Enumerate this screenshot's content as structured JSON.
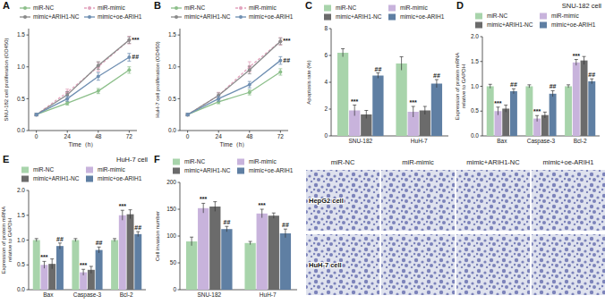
{
  "chart_data": [
    {
      "type": "line",
      "panel_label": "A",
      "y_label": "SNU-182 cell proliferation (OD450)",
      "x_label": "Time（h）",
      "x": [
        0,
        24,
        48,
        72
      ],
      "xlim": [
        -6,
        78
      ],
      "xticks": [
        0,
        24,
        48,
        72
      ],
      "ylim": [
        0,
        1.6
      ],
      "yticks": [
        {
          "value": 0,
          "label": "0.0"
        },
        {
          "value": 0.5,
          "label": "0.5"
        },
        {
          "value": 1,
          "label": "1.0"
        },
        {
          "value": 1.5,
          "label": "1.5"
        }
      ],
      "grid": false,
      "legend": "top",
      "series": [
        {
          "name": "miR-NC",
          "color": "#8cbf8a",
          "marker": "circle",
          "line_style": "solid",
          "values": [
            0.25,
            0.43,
            0.62,
            0.95
          ],
          "errors": [
            0.02,
            0.03,
            0.04,
            0.05
          ]
        },
        {
          "name": "miR-mimic",
          "color": "#e2a3bd",
          "marker": "circle",
          "line_style": "dashed",
          "values": [
            0.25,
            0.6,
            1.0,
            1.42
          ],
          "errors": [
            0.02,
            0.05,
            0.07,
            0.06
          ],
          "significance": "***"
        },
        {
          "name": "mimic+ARIH1-NC",
          "color": "#8a8a8a",
          "marker": "circle",
          "line_style": "solid",
          "values": [
            0.25,
            0.56,
            1.02,
            1.42
          ],
          "errors": [
            0.02,
            0.05,
            0.06,
            0.05
          ]
        },
        {
          "name": "mimic+oe-ARIH1",
          "color": "#6f8fb2",
          "marker": "circle",
          "line_style": "solid",
          "values": [
            0.25,
            0.5,
            0.85,
            1.15
          ],
          "errors": [
            0.02,
            0.04,
            0.06,
            0.06
          ],
          "significance": "##"
        }
      ]
    },
    {
      "type": "line",
      "panel_label": "B",
      "y_label": "HuH-7 cell proliferation (OD450)",
      "x_label": "Time（h）",
      "x": [
        0,
        24,
        48,
        72
      ],
      "xlim": [
        -6,
        78
      ],
      "xticks": [
        0,
        24,
        48,
        72
      ],
      "ylim": [
        0,
        1.6
      ],
      "yticks": [
        {
          "value": 0,
          "label": "0.0"
        },
        {
          "value": 0.5,
          "label": "0.5"
        },
        {
          "value": 1,
          "label": "1.0"
        },
        {
          "value": 1.5,
          "label": "1.5"
        }
      ],
      "grid": false,
      "legend": "top",
      "series": [
        {
          "name": "miR-NC",
          "color": "#8cbf8a",
          "marker": "circle",
          "line_style": "solid",
          "values": [
            0.25,
            0.45,
            0.6,
            0.92
          ],
          "errors": [
            0.02,
            0.03,
            0.04,
            0.05
          ]
        },
        {
          "name": "miR-mimic",
          "color": "#e2a3bd",
          "marker": "circle",
          "line_style": "dashed",
          "values": [
            0.25,
            0.55,
            1.0,
            1.4
          ],
          "errors": [
            0.02,
            0.05,
            0.08,
            0.06
          ],
          "significance": "***"
        },
        {
          "name": "mimic+ARIH1-NC",
          "color": "#8a8a8a",
          "marker": "circle",
          "line_style": "solid",
          "values": [
            0.25,
            0.55,
            0.95,
            1.4
          ],
          "errors": [
            0.02,
            0.04,
            0.06,
            0.05
          ]
        },
        {
          "name": "mimic+oe-ARIH1",
          "color": "#6f8fb2",
          "marker": "circle",
          "line_style": "solid",
          "values": [
            0.25,
            0.5,
            0.72,
            1.1
          ],
          "errors": [
            0.02,
            0.04,
            0.05,
            0.06
          ],
          "significance": "##"
        }
      ]
    },
    {
      "type": "bar",
      "panel_label": "C",
      "y_label": "Apoptosis rate (%)",
      "categories": [
        "SNU-182",
        "HuH-7"
      ],
      "ylim": [
        0,
        8
      ],
      "yticks": [
        0,
        2,
        4,
        6,
        8
      ],
      "grid": false,
      "legend": "top",
      "series": [
        {
          "name": "miR-NC",
          "color": "#a8d4ab",
          "values": [
            6.2,
            5.4
          ],
          "errors": [
            0.3,
            0.5
          ]
        },
        {
          "name": "miR-mimic",
          "color": "#c8b3dc",
          "values": [
            1.9,
            1.8
          ],
          "errors": [
            0.4,
            0.4
          ],
          "significance": "***"
        },
        {
          "name": "mimic+ARIH1-NC",
          "color": "#6b6b6b",
          "values": [
            1.6,
            1.9
          ],
          "errors": [
            0.3,
            0.3
          ]
        },
        {
          "name": "mimic+oe-ARIH1",
          "color": "#5f7fa3",
          "values": [
            4.5,
            3.9
          ],
          "errors": [
            0.2,
            0.3
          ],
          "significance": "##"
        }
      ]
    },
    {
      "type": "bar",
      "panel_label": "D",
      "title": "SNU-182 cell",
      "y_label": "Expression of protein mRNA\nrelative to GAPDH",
      "categories": [
        "Bax",
        "Caspase-3",
        "Bcl-2"
      ],
      "ylim": [
        0,
        2
      ],
      "yticks": [
        {
          "value": 0,
          "label": "0.0"
        },
        {
          "value": 0.5,
          "label": "0.5"
        },
        {
          "value": 1,
          "label": "1.0"
        },
        {
          "value": 1.5,
          "label": "1.5"
        },
        {
          "value": 2,
          "label": "2.0"
        }
      ],
      "grid": false,
      "legend": "top",
      "series": [
        {
          "name": "miR-NC",
          "color": "#a8d4ab",
          "values": [
            1.0,
            1.0,
            1.0
          ],
          "errors": [
            0.04,
            0.03,
            0.03
          ]
        },
        {
          "name": "miR-mimic",
          "color": "#c8b3dc",
          "values": [
            0.5,
            0.35,
            1.48
          ],
          "errors": [
            0.08,
            0.06,
            0.06
          ],
          "significance": "***"
        },
        {
          "name": "mimic+ARIH1-NC",
          "color": "#6b6b6b",
          "values": [
            0.55,
            0.42,
            1.52
          ],
          "errors": [
            0.07,
            0.06,
            0.08
          ]
        },
        {
          "name": "mimic+oe-ARIH1",
          "color": "#5f7fa3",
          "values": [
            0.9,
            0.85,
            1.1
          ],
          "errors": [
            0.05,
            0.06,
            0.05
          ],
          "significance": "##"
        }
      ]
    },
    {
      "type": "bar",
      "panel_label": "E",
      "title": "HuH-7 cell",
      "y_label": "Expression of protein mRNA\nrelative to GAPDH",
      "categories": [
        "Bax",
        "Caspase-3",
        "Bcl-2"
      ],
      "ylim": [
        0,
        2
      ],
      "yticks": [
        {
          "value": 0,
          "label": "0.0"
        },
        {
          "value": 0.5,
          "label": "0.5"
        },
        {
          "value": 1,
          "label": "1.0"
        },
        {
          "value": 1.5,
          "label": "1.5"
        },
        {
          "value": 2,
          "label": "2.0"
        }
      ],
      "grid": false,
      "legend": "top",
      "series": [
        {
          "name": "miR-NC",
          "color": "#a8d4ab",
          "values": [
            1.0,
            1.0,
            1.0
          ],
          "errors": [
            0.03,
            0.03,
            0.03
          ]
        },
        {
          "name": "miR-mimic",
          "color": "#c8b3dc",
          "values": [
            0.5,
            0.35,
            1.5
          ],
          "errors": [
            0.07,
            0.06,
            0.1
          ],
          "significance": "***"
        },
        {
          "name": "mimic+ARIH1-NC",
          "color": "#6b6b6b",
          "values": [
            0.52,
            0.4,
            1.52
          ],
          "errors": [
            0.1,
            0.07,
            0.09
          ]
        },
        {
          "name": "mimic+oe-ARIH1",
          "color": "#5f7fa3",
          "values": [
            0.88,
            0.8,
            1.12
          ],
          "errors": [
            0.06,
            0.06,
            0.05
          ],
          "significance": "##"
        }
      ]
    },
    {
      "type": "bar",
      "panel_label": "F",
      "y_label": "Cell invasion number",
      "categories": [
        "SNU-182",
        "HuH-7"
      ],
      "ylim": [
        0,
        200
      ],
      "yticks": [
        0,
        50,
        100,
        150,
        200
      ],
      "grid": false,
      "legend": "top",
      "series": [
        {
          "name": "miR-NC",
          "color": "#a8d4ab",
          "values": [
            90,
            87
          ],
          "errors": [
            8,
            3
          ]
        },
        {
          "name": "miR-mimic",
          "color": "#c8b3dc",
          "values": [
            152,
            142
          ],
          "errors": [
            9,
            8
          ],
          "significance": "***"
        },
        {
          "name": "mimic+ARIH1-NC",
          "color": "#6b6b6b",
          "values": [
            155,
            138
          ],
          "errors": [
            9,
            5
          ]
        },
        {
          "name": "mimic+oe-ARIH1",
          "color": "#5f7fa3",
          "values": [
            113,
            105
          ],
          "errors": [
            5,
            8
          ],
          "significance": "##"
        }
      ]
    }
  ],
  "image_panel": {
    "columns": [
      "miR-NC",
      "miR-mimic",
      "mimic+ARIH1-NC",
      "mimic+oe-ARIH1"
    ],
    "rows": [
      "HepG2 cell",
      "HuH-7 cell"
    ]
  }
}
